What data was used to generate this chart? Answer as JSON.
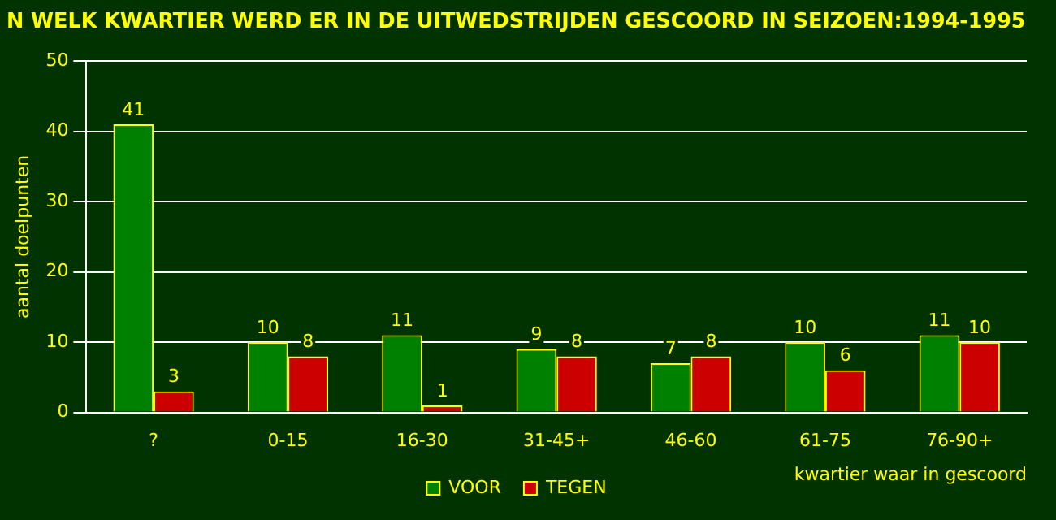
{
  "chart_data": {
    "type": "bar",
    "title": "N WELK KWARTIER WERD ER IN DE UITWEDSTRIJDEN GESCOORD IN SEIZOEN:1994-1995",
    "xlabel": "kwartier waar in gescoord",
    "ylabel": "aantal doelpunten",
    "categories": [
      "?",
      "0-15",
      "16-30",
      "31-45+",
      "46-60",
      "61-75",
      "76-90+"
    ],
    "series": [
      {
        "name": "VOOR",
        "color": "#008000",
        "values": [
          41,
          10,
          11,
          9,
          7,
          10,
          11
        ]
      },
      {
        "name": "TEGEN",
        "color": "#cc0000",
        "values": [
          3,
          8,
          1,
          8,
          8,
          6,
          10
        ]
      }
    ],
    "ylim": [
      0,
      50
    ],
    "yticks": [
      0,
      10,
      20,
      30,
      40,
      50
    ],
    "grid": "y",
    "legend": "bottom",
    "data_labels": true
  }
}
